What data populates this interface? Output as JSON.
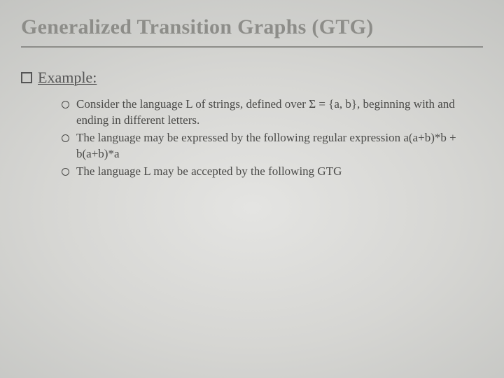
{
  "slide": {
    "title": "Generalized Transition Graphs (GTG)",
    "example_label": "Example:",
    "bullets": [
      "Consider the language L of strings, defined over Σ = {a, b}, beginning with and ending in different letters.",
      "The language may be expressed by the following regular expression a(a+b)*b + b(a+b)*a",
      "The language L may be accepted by the following GTG"
    ]
  },
  "style": {
    "title_color": "#8d8d89",
    "title_fontsize": 30,
    "example_fontsize": 22,
    "bullet_fontsize": 17,
    "text_color": "#4a4a48",
    "background_center": "#e4e4e2",
    "background_edge": "#bfc0bd",
    "underline_color": "#8d8d89"
  }
}
